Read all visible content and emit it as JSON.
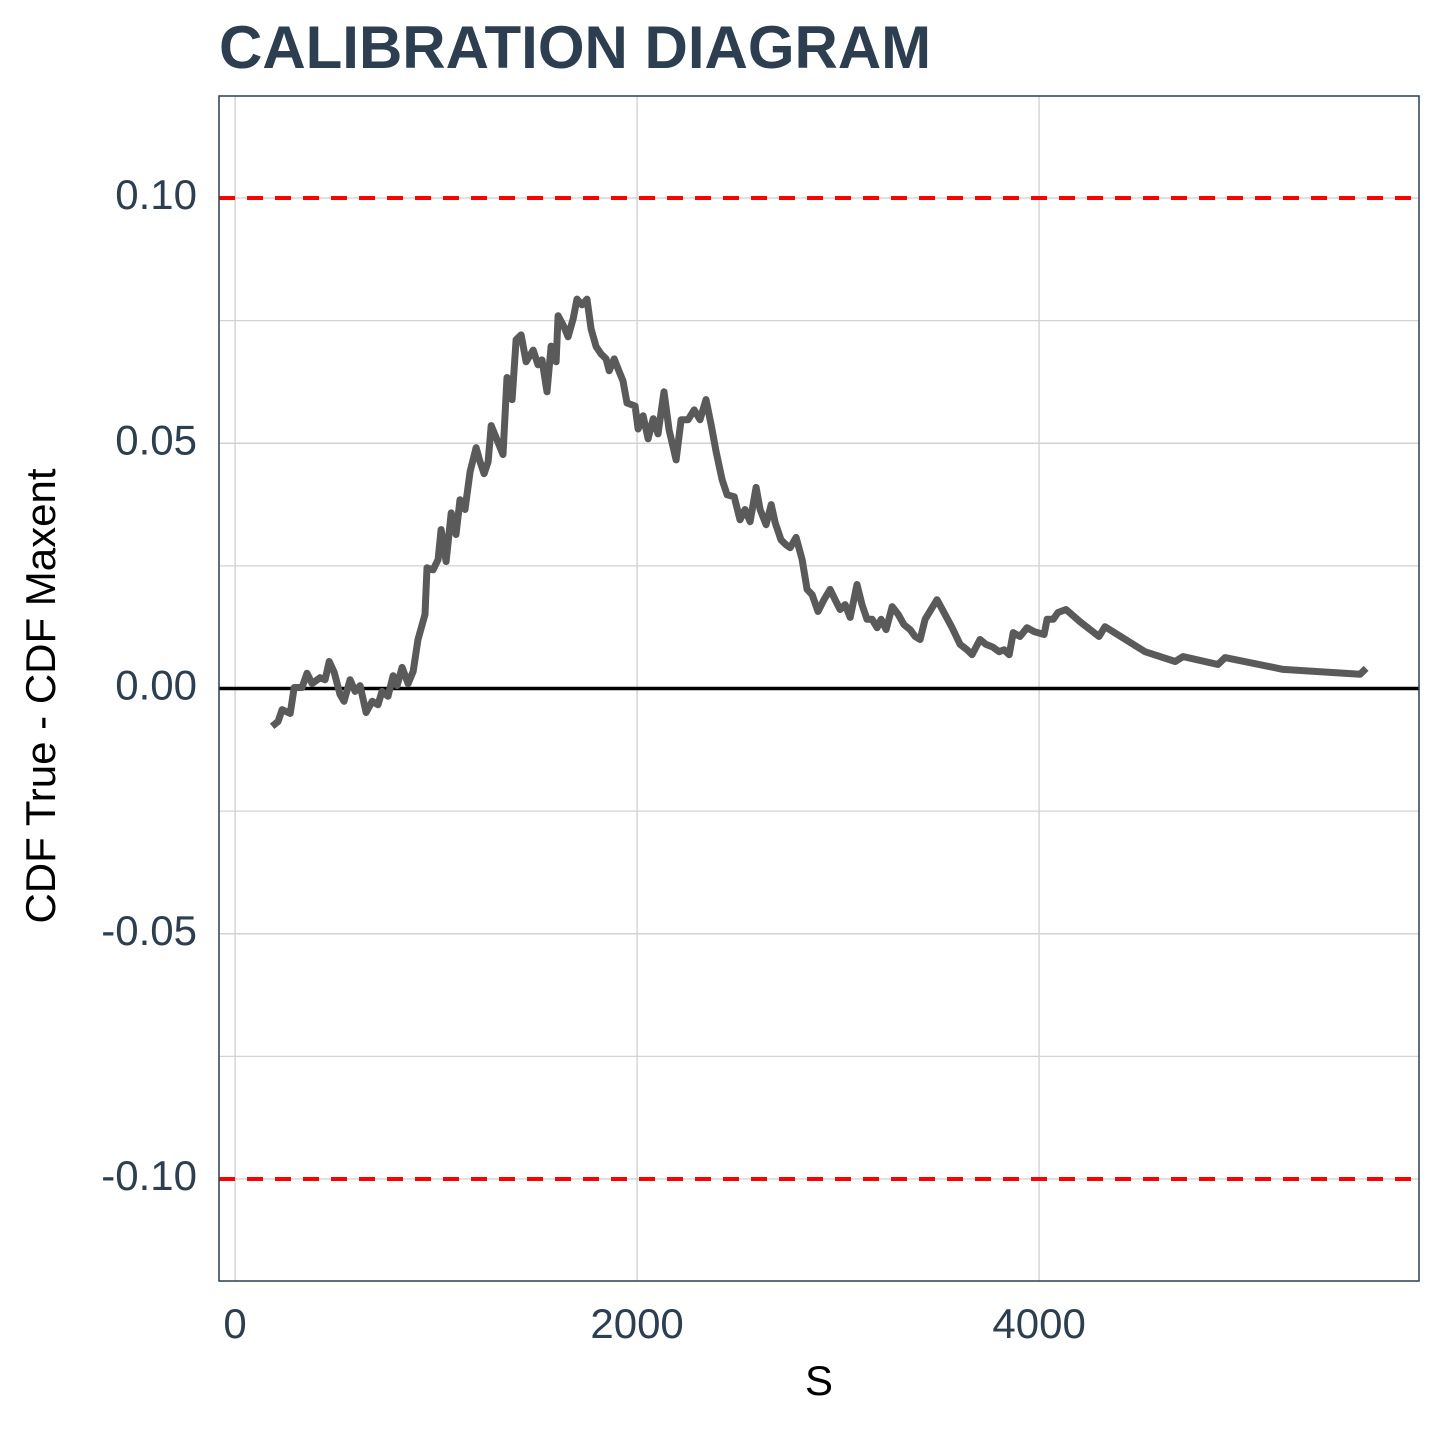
{
  "chart_data": {
    "type": "line",
    "title": "CALIBRATION DIAGRAM",
    "x_label": "S",
    "y_label": "CDF True - CDF Maxent",
    "xlim": [
      -80,
      5890
    ],
    "ylim": [
      -0.1208,
      0.1208
    ],
    "xticks": [
      0,
      2000,
      4000
    ],
    "yticks": [
      {
        "value": -0.1,
        "label": "-0.10"
      },
      -0.05,
      {
        "value": 0,
        "label": "0.00"
      },
      0.05,
      {
        "value": 0.1,
        "label": "0.10"
      }
    ],
    "y_minor_grid": [
      -0.075,
      -0.025,
      0.025,
      0.075
    ],
    "grid": true,
    "hlines": [
      {
        "value": 0.1,
        "color": "#ff0000",
        "dashed": true
      },
      {
        "value": -0.1,
        "color": "#ff0000",
        "dashed": true
      },
      {
        "value": 0,
        "color": "#000000",
        "dashed": false
      }
    ],
    "series": [
      {
        "color": "#5a5a5a",
        "x": [
          184,
          214,
          234,
          274,
          294,
          333,
          358,
          383,
          423,
          448,
          468,
          493,
          522,
          542,
          572,
          597,
          622,
          652,
          682,
          711,
          731,
          761,
          786,
          806,
          831,
          861,
          886,
          910,
          945,
          955,
          985,
          1010,
          1025,
          1050,
          1075,
          1099,
          1119,
          1144,
          1169,
          1199,
          1219,
          1239,
          1259,
          1274,
          1303,
          1333,
          1353,
          1378,
          1398,
          1423,
          1448,
          1483,
          1507,
          1527,
          1552,
          1572,
          1597,
          1607,
          1637,
          1657,
          1682,
          1701,
          1726,
          1751,
          1771,
          1796,
          1821,
          1846,
          1861,
          1886,
          1905,
          1930,
          1950,
          1990,
          2005,
          2030,
          2055,
          2080,
          2104,
          2134,
          2159,
          2194,
          2219,
          2254,
          2284,
          2313,
          2343,
          2368,
          2393,
          2423,
          2448,
          2483,
          2512,
          2537,
          2562,
          2592,
          2612,
          2642,
          2667,
          2687,
          2716,
          2741,
          2761,
          2791,
          2821,
          2846,
          2871,
          2900,
          2930,
          2960,
          2985,
          3010,
          3035,
          3060,
          3094,
          3119,
          3144,
          3169,
          3194,
          3214,
          3239,
          3269,
          3299,
          3328,
          3358,
          3383,
          3408,
          3433,
          3468,
          3492,
          3532,
          3567,
          3607,
          3642,
          3666,
          3706,
          3736,
          3771,
          3801,
          3826,
          3851,
          3871,
          3905,
          3940,
          3975,
          4025,
          4040,
          4070,
          4094,
          4134,
          4204,
          4298,
          4328,
          4527,
          4677,
          4716,
          4890,
          4925,
          5214,
          5597,
          5627
        ],
        "values": [
          -0.0077,
          -0.0067,
          -0.0043,
          -0.0051,
          0.0002,
          0.0002,
          0.0031,
          0.001,
          0.0022,
          0.0018,
          0.0055,
          0.0033,
          -0.0012,
          -0.0026,
          0.0018,
          -0.0006,
          0.0006,
          -0.0049,
          -0.0026,
          -0.0033,
          -0.0006,
          -0.0016,
          0.0026,
          0.0006,
          0.0043,
          0.001,
          0.0035,
          0.01,
          0.0151,
          0.0246,
          0.0242,
          0.0263,
          0.0324,
          0.0259,
          0.0358,
          0.0314,
          0.0385,
          0.0365,
          0.0442,
          0.0491,
          0.0462,
          0.0438,
          0.0462,
          0.0536,
          0.0507,
          0.0477,
          0.0634,
          0.0589,
          0.0711,
          0.0721,
          0.0666,
          0.069,
          0.066,
          0.067,
          0.0605,
          0.0698,
          0.0666,
          0.076,
          0.0737,
          0.0717,
          0.0754,
          0.0794,
          0.0782,
          0.0794,
          0.0733,
          0.0697,
          0.0682,
          0.0672,
          0.0648,
          0.0672,
          0.0652,
          0.0627,
          0.0582,
          0.0576,
          0.0529,
          0.0556,
          0.0509,
          0.055,
          0.0519,
          0.0605,
          0.0527,
          0.0466,
          0.0548,
          0.0548,
          0.0568,
          0.0548,
          0.0589,
          0.0538,
          0.0483,
          0.0426,
          0.0395,
          0.0391,
          0.0344,
          0.0365,
          0.034,
          0.041,
          0.0365,
          0.0334,
          0.0375,
          0.0338,
          0.0303,
          0.0293,
          0.0287,
          0.0308,
          0.0263,
          0.0202,
          0.0191,
          0.0157,
          0.0181,
          0.0202,
          0.0181,
          0.0161,
          0.0171,
          0.0145,
          0.0212,
          0.0171,
          0.0141,
          0.0141,
          0.0124,
          0.0141,
          0.012,
          0.0167,
          0.0151,
          0.013,
          0.012,
          0.0106,
          0.01,
          0.0141,
          0.0165,
          0.0181,
          0.0151,
          0.0124,
          0.009,
          0.0079,
          0.0069,
          0.01,
          0.009,
          0.0084,
          0.0075,
          0.0079,
          0.0069,
          0.0114,
          0.0106,
          0.0124,
          0.0116,
          0.011,
          0.0141,
          0.0141,
          0.0155,
          0.0161,
          0.0136,
          0.0106,
          0.0126,
          0.0075,
          0.0055,
          0.0065,
          0.0049,
          0.0063,
          0.0039,
          0.0029,
          0.0041
        ]
      }
    ]
  }
}
